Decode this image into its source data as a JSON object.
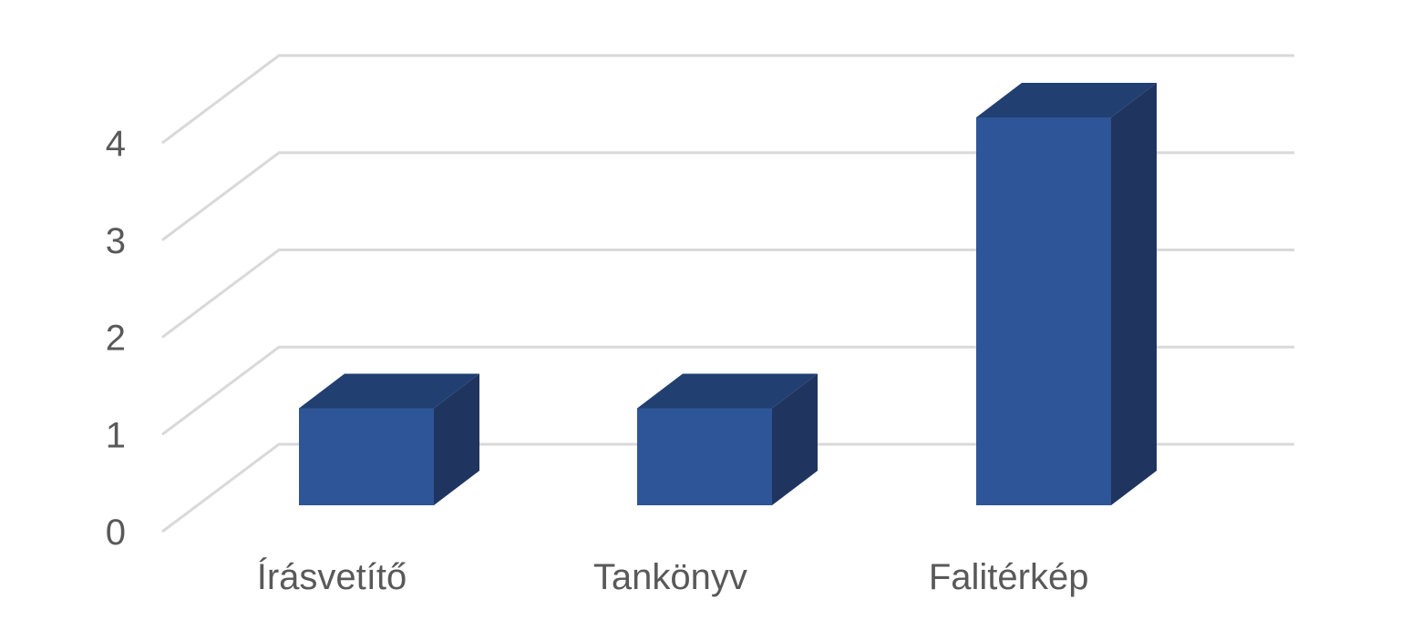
{
  "chart_data": {
    "type": "bar",
    "categories": [
      "Írásvetítő",
      "Tankönyv",
      "Falitérkép"
    ],
    "values": [
      1,
      1,
      4
    ],
    "title": "",
    "xlabel": "",
    "ylabel": "",
    "ylim": [
      0,
      4
    ],
    "yticks": [
      "0",
      "1",
      "2",
      "3",
      "4"
    ],
    "grid": true,
    "legend": "none",
    "colors": {
      "front": "#2e5597",
      "top": "#213f70",
      "side": "#1f355f",
      "grid": "#d9d9d9",
      "text": "#595959"
    }
  }
}
